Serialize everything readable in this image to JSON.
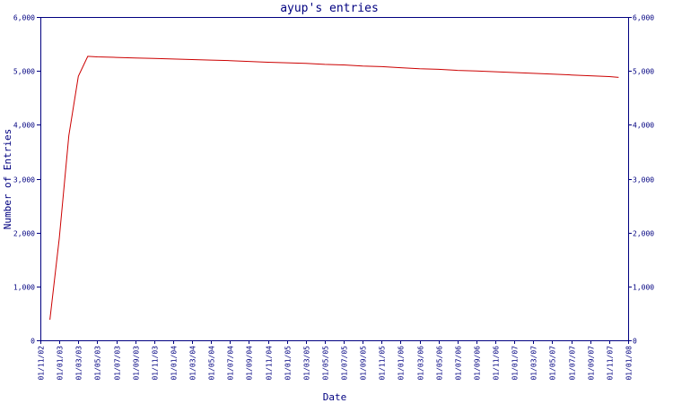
{
  "chart_data": {
    "type": "line",
    "title": "ayup's entries",
    "xlabel": "Date",
    "ylabel": "Number of Entries",
    "ylim": [
      0,
      6000
    ],
    "yticks": [
      0,
      1000,
      2000,
      3000,
      4000,
      5000,
      6000
    ],
    "ytick_labels": [
      "0",
      "1,000",
      "2,000",
      "3,000",
      "4,000",
      "5,000",
      "6,000"
    ],
    "right_axis_mirrored": true,
    "grid": false,
    "legend": "none",
    "x_tick_labels": [
      "01/11/02",
      "01/01/03",
      "01/03/03",
      "01/05/03",
      "01/07/03",
      "01/09/03",
      "01/11/03",
      "01/01/04",
      "01/03/04",
      "01/05/04",
      "01/07/04",
      "01/09/04",
      "01/11/04",
      "01/01/05",
      "01/03/05",
      "01/05/05",
      "01/07/05",
      "01/09/05",
      "01/11/05",
      "01/01/06",
      "01/03/06",
      "01/05/06",
      "01/07/06",
      "01/09/06",
      "01/11/06",
      "01/01/07",
      "01/03/07",
      "01/05/07",
      "01/07/07",
      "01/09/07",
      "01/11/07",
      "01/01/08"
    ],
    "x": [
      "01/12/02",
      "01/01/03",
      "01/02/03",
      "01/03/03",
      "01/04/03",
      "01/05/03",
      "01/07/03",
      "01/09/03",
      "01/11/03",
      "01/01/04",
      "01/03/04",
      "01/05/04",
      "01/07/04",
      "01/09/04",
      "01/11/04",
      "01/01/05",
      "01/03/05",
      "01/05/05",
      "01/07/05",
      "01/09/05",
      "01/11/05",
      "01/01/06",
      "01/03/06",
      "01/05/06",
      "01/07/06",
      "01/09/06",
      "01/11/06",
      "01/01/07",
      "01/03/07",
      "01/05/07",
      "01/07/07",
      "01/09/07",
      "01/11/07",
      "01/12/07"
    ],
    "series": [
      {
        "color": "#cc0000",
        "values": [
          380,
          1900,
          3800,
          4900,
          5270,
          5260,
          5250,
          5240,
          5230,
          5220,
          5210,
          5200,
          5190,
          5175,
          5160,
          5150,
          5140,
          5120,
          5110,
          5090,
          5080,
          5060,
          5040,
          5030,
          5010,
          5000,
          4985,
          4970,
          4955,
          4940,
          4925,
          4910,
          4895,
          4880
        ]
      }
    ]
  }
}
